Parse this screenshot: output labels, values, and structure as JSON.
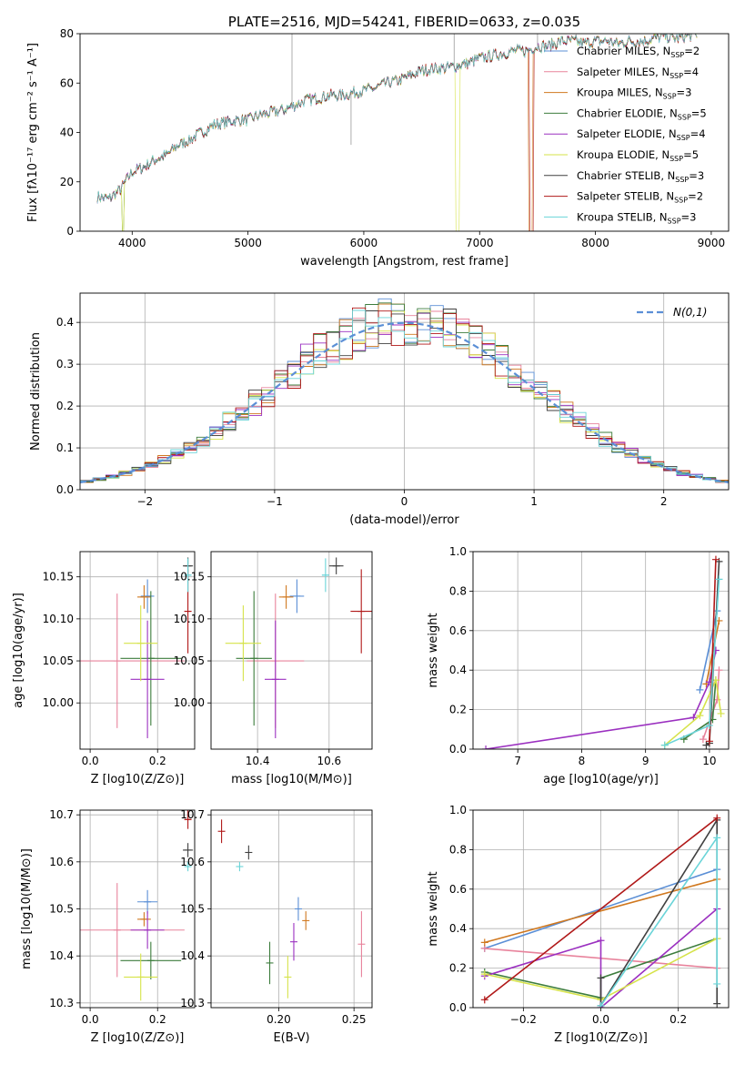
{
  "page": {
    "title": "PLATE=2516, MJD=54241, FIBERID=0633, z=0.035"
  },
  "chart_data": [
    {
      "id": "spectrum",
      "type": "line",
      "title": "PLATE=2516, MJD=54241, FIBERID=0633, z=0.035",
      "xlabel": "wavelength [Angstrom, rest frame]",
      "ylabel": "Flux [fλ10⁻¹⁷ erg cm⁻² s⁻¹ A⁻¹]",
      "xlim": [
        3550,
        9150
      ],
      "ylim": [
        0,
        80
      ],
      "xticks": [
        "4000",
        "5000",
        "6000",
        "7000",
        "8000",
        "9000"
      ],
      "yticks": [
        "0",
        "20",
        "40",
        "60",
        "80"
      ],
      "legend_position": "top-right",
      "grid": false,
      "continuum": {
        "x": [
          3700,
          3800,
          3900,
          4000,
          4100,
          4200,
          4300,
          4400,
          4500,
          4600,
          4700,
          4800,
          4900,
          5000,
          5100,
          5200,
          5300,
          5400,
          5500,
          5600,
          5700,
          5800,
          5900,
          6000,
          6100,
          6200,
          6300,
          6400,
          6500,
          6600,
          6700,
          6800,
          6900,
          7000,
          7100,
          7200,
          7300,
          7400,
          7500,
          7600,
          7700,
          7800,
          7900,
          8000,
          8100,
          8200,
          8300,
          8400,
          8500,
          8600,
          8700,
          8800,
          8900
        ],
        "y": [
          14,
          13,
          17,
          24,
          26,
          29,
          31,
          35,
          37,
          40,
          43,
          44,
          45,
          45,
          47,
          48,
          49,
          51,
          53,
          54,
          55,
          55,
          56,
          57,
          58,
          60,
          61,
          63,
          65,
          66,
          66,
          67,
          68,
          70,
          71,
          72,
          73,
          73,
          75,
          75,
          77,
          77,
          76,
          77,
          77,
          76,
          77,
          77,
          78,
          79,
          78,
          79,
          80
        ]
      },
      "series": [
        {
          "name": "Chabrier MILES, N_SSP=2",
          "color": "#5b8fd6"
        },
        {
          "name": "Salpeter MILES, N_SSP=4",
          "color": "#e8839c"
        },
        {
          "name": "Kroupa MILES, N_SSP=3",
          "color": "#d0781f"
        },
        {
          "name": "Chabrier ELODIE, N_SSP=5",
          "color": "#3d7d3d"
        },
        {
          "name": "Salpeter ELODIE, N_SSP=4",
          "color": "#9b30c0"
        },
        {
          "name": "Kroupa ELODIE, N_SSP=5",
          "color": "#d6e34a"
        },
        {
          "name": "Chabrier STELIB, N_SSP=3",
          "color": "#404040"
        },
        {
          "name": "Salpeter STELIB, N_SSP=2",
          "color": "#b01818"
        },
        {
          "name": "Kroupa STELIB, N_SSP=3",
          "color": "#6ad4d8"
        }
      ],
      "legend": [
        {
          "pre": "Chabrier MILES, N",
          "sub": "SSP",
          "post": "=2"
        },
        {
          "pre": "Salpeter MILES, N",
          "sub": "SSP",
          "post": "=4"
        },
        {
          "pre": "Kroupa MILES, N",
          "sub": "SSP",
          "post": "=3"
        },
        {
          "pre": "Chabrier ELODIE, N",
          "sub": "SSP",
          "post": "=5"
        },
        {
          "pre": "Salpeter ELODIE, N",
          "sub": "SSP",
          "post": "=4"
        },
        {
          "pre": "Kroupa ELODIE, N",
          "sub": "SSP",
          "post": "=5"
        },
        {
          "pre": "Chabrier STELIB, N",
          "sub": "SSP",
          "post": "=3"
        },
        {
          "pre": "Salpeter STELIB, N",
          "sub": "SSP",
          "post": "=2"
        },
        {
          "pre": "Kroupa STELIB, N",
          "sub": "SSP",
          "post": "=3"
        }
      ]
    },
    {
      "id": "residuals",
      "type": "histogram",
      "xlabel": "(data-model)/error",
      "ylabel": "Normed distribution",
      "xlim": [
        -2.5,
        2.5
      ],
      "ylim": [
        0,
        0.47
      ],
      "xticks": [
        "−2",
        "−1",
        "0",
        "1",
        "2"
      ],
      "yticks": [
        "0.0",
        "0.1",
        "0.2",
        "0.3",
        "0.4"
      ],
      "grid": true,
      "reference": {
        "label": "N(0,1)",
        "color": "#5b8fd6",
        "style": "dashed"
      }
    },
    {
      "id": "age-vs-Z",
      "type": "scatter",
      "xlabel": "Z [log10(Z/Z⊙)]",
      "ylabel": "age [log10(age/yr)]",
      "xlim": [
        -0.03,
        0.31
      ],
      "ylim": [
        9.945,
        10.18
      ],
      "xticks": [
        "0.0",
        "0.2"
      ],
      "yticks": [
        "10.00",
        "10.05",
        "10.10",
        "10.15"
      ],
      "grid": true,
      "points": [
        {
          "color": "#5b8fd6",
          "x": 0.17,
          "xerr": 0.02,
          "y": 10.127,
          "yerr": 0.02
        },
        {
          "color": "#e8839c",
          "x": 0.08,
          "xerr": 0.2,
          "y": 10.05,
          "yerr": 0.08
        },
        {
          "color": "#d0781f",
          "x": 0.16,
          "xerr": 0.02,
          "y": 10.126,
          "yerr": 0.014
        },
        {
          "color": "#3d7d3d",
          "x": 0.18,
          "xerr": 0.09,
          "y": 10.053,
          "yerr": 0.08
        },
        {
          "color": "#9b30c0",
          "x": 0.17,
          "xerr": 0.05,
          "y": 10.028,
          "yerr": 0.07
        },
        {
          "color": "#d6e34a",
          "x": 0.15,
          "xerr": 0.05,
          "y": 10.071,
          "yerr": 0.045
        },
        {
          "color": "#404040",
          "x": 0.29,
          "xerr": 0.015,
          "y": 10.163,
          "yerr": 0.01
        },
        {
          "color": "#b01818",
          "x": 0.29,
          "xerr": 0.01,
          "y": 10.109,
          "yerr": 0.05
        },
        {
          "color": "#6ad4d8",
          "x": 0.29,
          "xerr": 0.01,
          "y": 10.152,
          "yerr": 0.02
        }
      ]
    },
    {
      "id": "age-vs-mass",
      "type": "scatter",
      "xlabel": "mass [log10(M/M⊙)]",
      "ylabel": "",
      "xlim": [
        10.27,
        10.72
      ],
      "ylim": [
        9.945,
        10.18
      ],
      "xticks": [
        "10.4",
        "10.6"
      ],
      "yticks": [
        "10.00",
        "10.05",
        "10.10",
        "10.15"
      ],
      "grid": true,
      "points": [
        {
          "color": "#5b8fd6",
          "x": 10.51,
          "xerr": 0.02,
          "y": 10.127,
          "yerr": 0.02
        },
        {
          "color": "#e8839c",
          "x": 10.45,
          "xerr": 0.08,
          "y": 10.05,
          "yerr": 0.08
        },
        {
          "color": "#d0781f",
          "x": 10.48,
          "xerr": 0.02,
          "y": 10.126,
          "yerr": 0.014
        },
        {
          "color": "#3d7d3d",
          "x": 10.39,
          "xerr": 0.05,
          "y": 10.053,
          "yerr": 0.08
        },
        {
          "color": "#9b30c0",
          "x": 10.45,
          "xerr": 0.03,
          "y": 10.028,
          "yerr": 0.07
        },
        {
          "color": "#d6e34a",
          "x": 10.36,
          "xerr": 0.05,
          "y": 10.071,
          "yerr": 0.045
        },
        {
          "color": "#404040",
          "x": 10.62,
          "xerr": 0.02,
          "y": 10.163,
          "yerr": 0.01
        },
        {
          "color": "#b01818",
          "x": 10.69,
          "xerr": 0.03,
          "y": 10.109,
          "yerr": 0.05
        },
        {
          "color": "#6ad4d8",
          "x": 10.59,
          "xerr": 0.01,
          "y": 10.152,
          "yerr": 0.02
        }
      ]
    },
    {
      "id": "massweight-vs-age",
      "type": "line",
      "xlabel": "age [log10(age/yr)]",
      "ylabel": "mass weight",
      "xlim": [
        6.3,
        10.3
      ],
      "ylim": [
        0,
        1
      ],
      "xticks": [
        "7",
        "8",
        "9",
        "10"
      ],
      "yticks": [
        "0.0",
        "0.2",
        "0.4",
        "0.6",
        "0.8",
        "1.0"
      ],
      "grid": true,
      "series": [
        {
          "color": "#5b8fd6",
          "x": [
            9.85,
            10.12
          ],
          "y": [
            0.3,
            0.7
          ]
        },
        {
          "color": "#e8839c",
          "x": [
            9.9,
            10.12,
            10.15
          ],
          "y": [
            0.05,
            0.25,
            0.4
          ]
        },
        {
          "color": "#d0781f",
          "x": [
            9.95,
            10.15
          ],
          "y": [
            0.33,
            0.65
          ]
        },
        {
          "color": "#3d7d3d",
          "x": [
            9.6,
            10.05,
            10.1
          ],
          "y": [
            0.05,
            0.15,
            0.35
          ]
        },
        {
          "color": "#9b30c0",
          "x": [
            6.5,
            9.75,
            10.0,
            10.1
          ],
          "y": [
            0.0,
            0.16,
            0.34,
            0.5
          ]
        },
        {
          "color": "#d6e34a",
          "x": [
            9.3,
            9.85,
            10.1,
            10.18
          ],
          "y": [
            0.02,
            0.17,
            0.35,
            0.18
          ]
        },
        {
          "color": "#404040",
          "x": [
            9.95,
            10.0,
            10.15
          ],
          "y": [
            0.02,
            0.03,
            0.95
          ]
        },
        {
          "color": "#b01818",
          "x": [
            10.0,
            10.1
          ],
          "y": [
            0.04,
            0.96
          ]
        },
        {
          "color": "#6ad4d8",
          "x": [
            9.3,
            10.0,
            10.15
          ],
          "y": [
            0.02,
            0.12,
            0.86
          ]
        }
      ]
    },
    {
      "id": "mass-vs-Z",
      "type": "scatter",
      "xlabel": "Z [log10(Z/Z⊙)]",
      "ylabel": "mass [log10(M/M⊙)]",
      "xlim": [
        -0.03,
        0.31
      ],
      "ylim": [
        10.29,
        10.71
      ],
      "xticks": [
        "0.0",
        "0.2"
      ],
      "yticks": [
        "10.3",
        "10.4",
        "10.5",
        "10.6",
        "10.7"
      ],
      "grid": true,
      "points": [
        {
          "color": "#5b8fd6",
          "x": 0.17,
          "xerr": 0.03,
          "y": 10.515,
          "yerr": 0.025
        },
        {
          "color": "#e8839c",
          "x": 0.08,
          "xerr": 0.2,
          "y": 10.455,
          "yerr": 0.1
        },
        {
          "color": "#d0781f",
          "x": 0.16,
          "xerr": 0.02,
          "y": 10.478,
          "yerr": 0.015
        },
        {
          "color": "#3d7d3d",
          "x": 0.18,
          "xerr": 0.09,
          "y": 10.39,
          "yerr": 0.04
        },
        {
          "color": "#9b30c0",
          "x": 0.17,
          "xerr": 0.05,
          "y": 10.455,
          "yerr": 0.04
        },
        {
          "color": "#d6e34a",
          "x": 0.15,
          "xerr": 0.05,
          "y": 10.355,
          "yerr": 0.05
        },
        {
          "color": "#404040",
          "x": 0.29,
          "xerr": 0.015,
          "y": 10.625,
          "yerr": 0.015
        },
        {
          "color": "#b01818",
          "x": 0.29,
          "xerr": 0.01,
          "y": 10.69,
          "yerr": 0.02
        },
        {
          "color": "#6ad4d8",
          "x": 0.29,
          "xerr": 0.01,
          "y": 10.59,
          "yerr": 0.01
        }
      ]
    },
    {
      "id": "mass-vs-ebv",
      "type": "scatter",
      "xlabel": "E(B-V)",
      "ylabel": "",
      "xlim": [
        0.155,
        0.262
      ],
      "ylim": [
        10.29,
        10.71
      ],
      "xticks": [
        "0.20",
        "0.25"
      ],
      "yticks": [
        "10.3",
        "10.4",
        "10.5",
        "10.6",
        "10.7"
      ],
      "grid": true,
      "points": [
        {
          "color": "#5b8fd6",
          "x": 0.213,
          "xerr": 0,
          "y": 10.5,
          "yerr": 0.025
        },
        {
          "color": "#e8839c",
          "x": 0.255,
          "xerr": 0,
          "y": 10.425,
          "yerr": 0.07
        },
        {
          "color": "#d0781f",
          "x": 0.218,
          "xerr": 0,
          "y": 10.475,
          "yerr": 0.02
        },
        {
          "color": "#3d7d3d",
          "x": 0.194,
          "xerr": 0,
          "y": 10.385,
          "yerr": 0.045
        },
        {
          "color": "#9b30c0",
          "x": 0.21,
          "xerr": 0,
          "y": 10.43,
          "yerr": 0.04
        },
        {
          "color": "#d6e34a",
          "x": 0.206,
          "xerr": 0,
          "y": 10.355,
          "yerr": 0.045
        },
        {
          "color": "#404040",
          "x": 0.18,
          "xerr": 0,
          "y": 10.62,
          "yerr": 0.015
        },
        {
          "color": "#b01818",
          "x": 0.162,
          "xerr": 0,
          "y": 10.665,
          "yerr": 0.025
        },
        {
          "color": "#6ad4d8",
          "x": 0.174,
          "xerr": 0,
          "y": 10.59,
          "yerr": 0.01
        }
      ]
    },
    {
      "id": "massweight-vs-Z",
      "type": "line",
      "xlabel": "Z [log10(Z/Z⊙)]",
      "ylabel": "mass weight",
      "xlim": [
        -0.33,
        0.33
      ],
      "ylim": [
        0,
        1
      ],
      "xticks": [
        "−0.2",
        "0.0",
        "0.2"
      ],
      "yticks": [
        "0.0",
        "0.2",
        "0.4",
        "0.6",
        "0.8",
        "1.0"
      ],
      "grid": true,
      "series": [
        {
          "color": "#5b8fd6",
          "x": [
            -0.3,
            0.3
          ],
          "y": [
            0.3,
            0.7
          ]
        },
        {
          "color": "#e8839c",
          "x": [
            -0.3,
            0.3
          ],
          "y": [
            0.3,
            0.2
          ]
        },
        {
          "color": "#d0781f",
          "x": [
            -0.3,
            0.3
          ],
          "y": [
            0.33,
            0.65
          ]
        },
        {
          "color": "#3d7d3d",
          "x": [
            -0.3,
            0.0,
            0.0,
            0.3
          ],
          "y": [
            0.18,
            0.05,
            0.15,
            0.35
          ]
        },
        {
          "color": "#9b30c0",
          "x": [
            -0.3,
            0.0,
            0.0,
            0.3
          ],
          "y": [
            0.16,
            0.34,
            0.0,
            0.5
          ]
        },
        {
          "color": "#d6e34a",
          "x": [
            -0.3,
            0.0,
            0.3
          ],
          "y": [
            0.17,
            0.04,
            0.35
          ]
        },
        {
          "color": "#404040",
          "x": [
            0.0,
            0.0,
            0.3,
            0.3
          ],
          "y": [
            0.15,
            0.01,
            0.95,
            0.02
          ]
        },
        {
          "color": "#b01818",
          "x": [
            -0.3,
            0.3
          ],
          "y": [
            0.04,
            0.96
          ]
        },
        {
          "color": "#6ad4d8",
          "x": [
            0.0,
            0.3,
            0.3
          ],
          "y": [
            0.01,
            0.86,
            0.12
          ]
        }
      ]
    }
  ]
}
